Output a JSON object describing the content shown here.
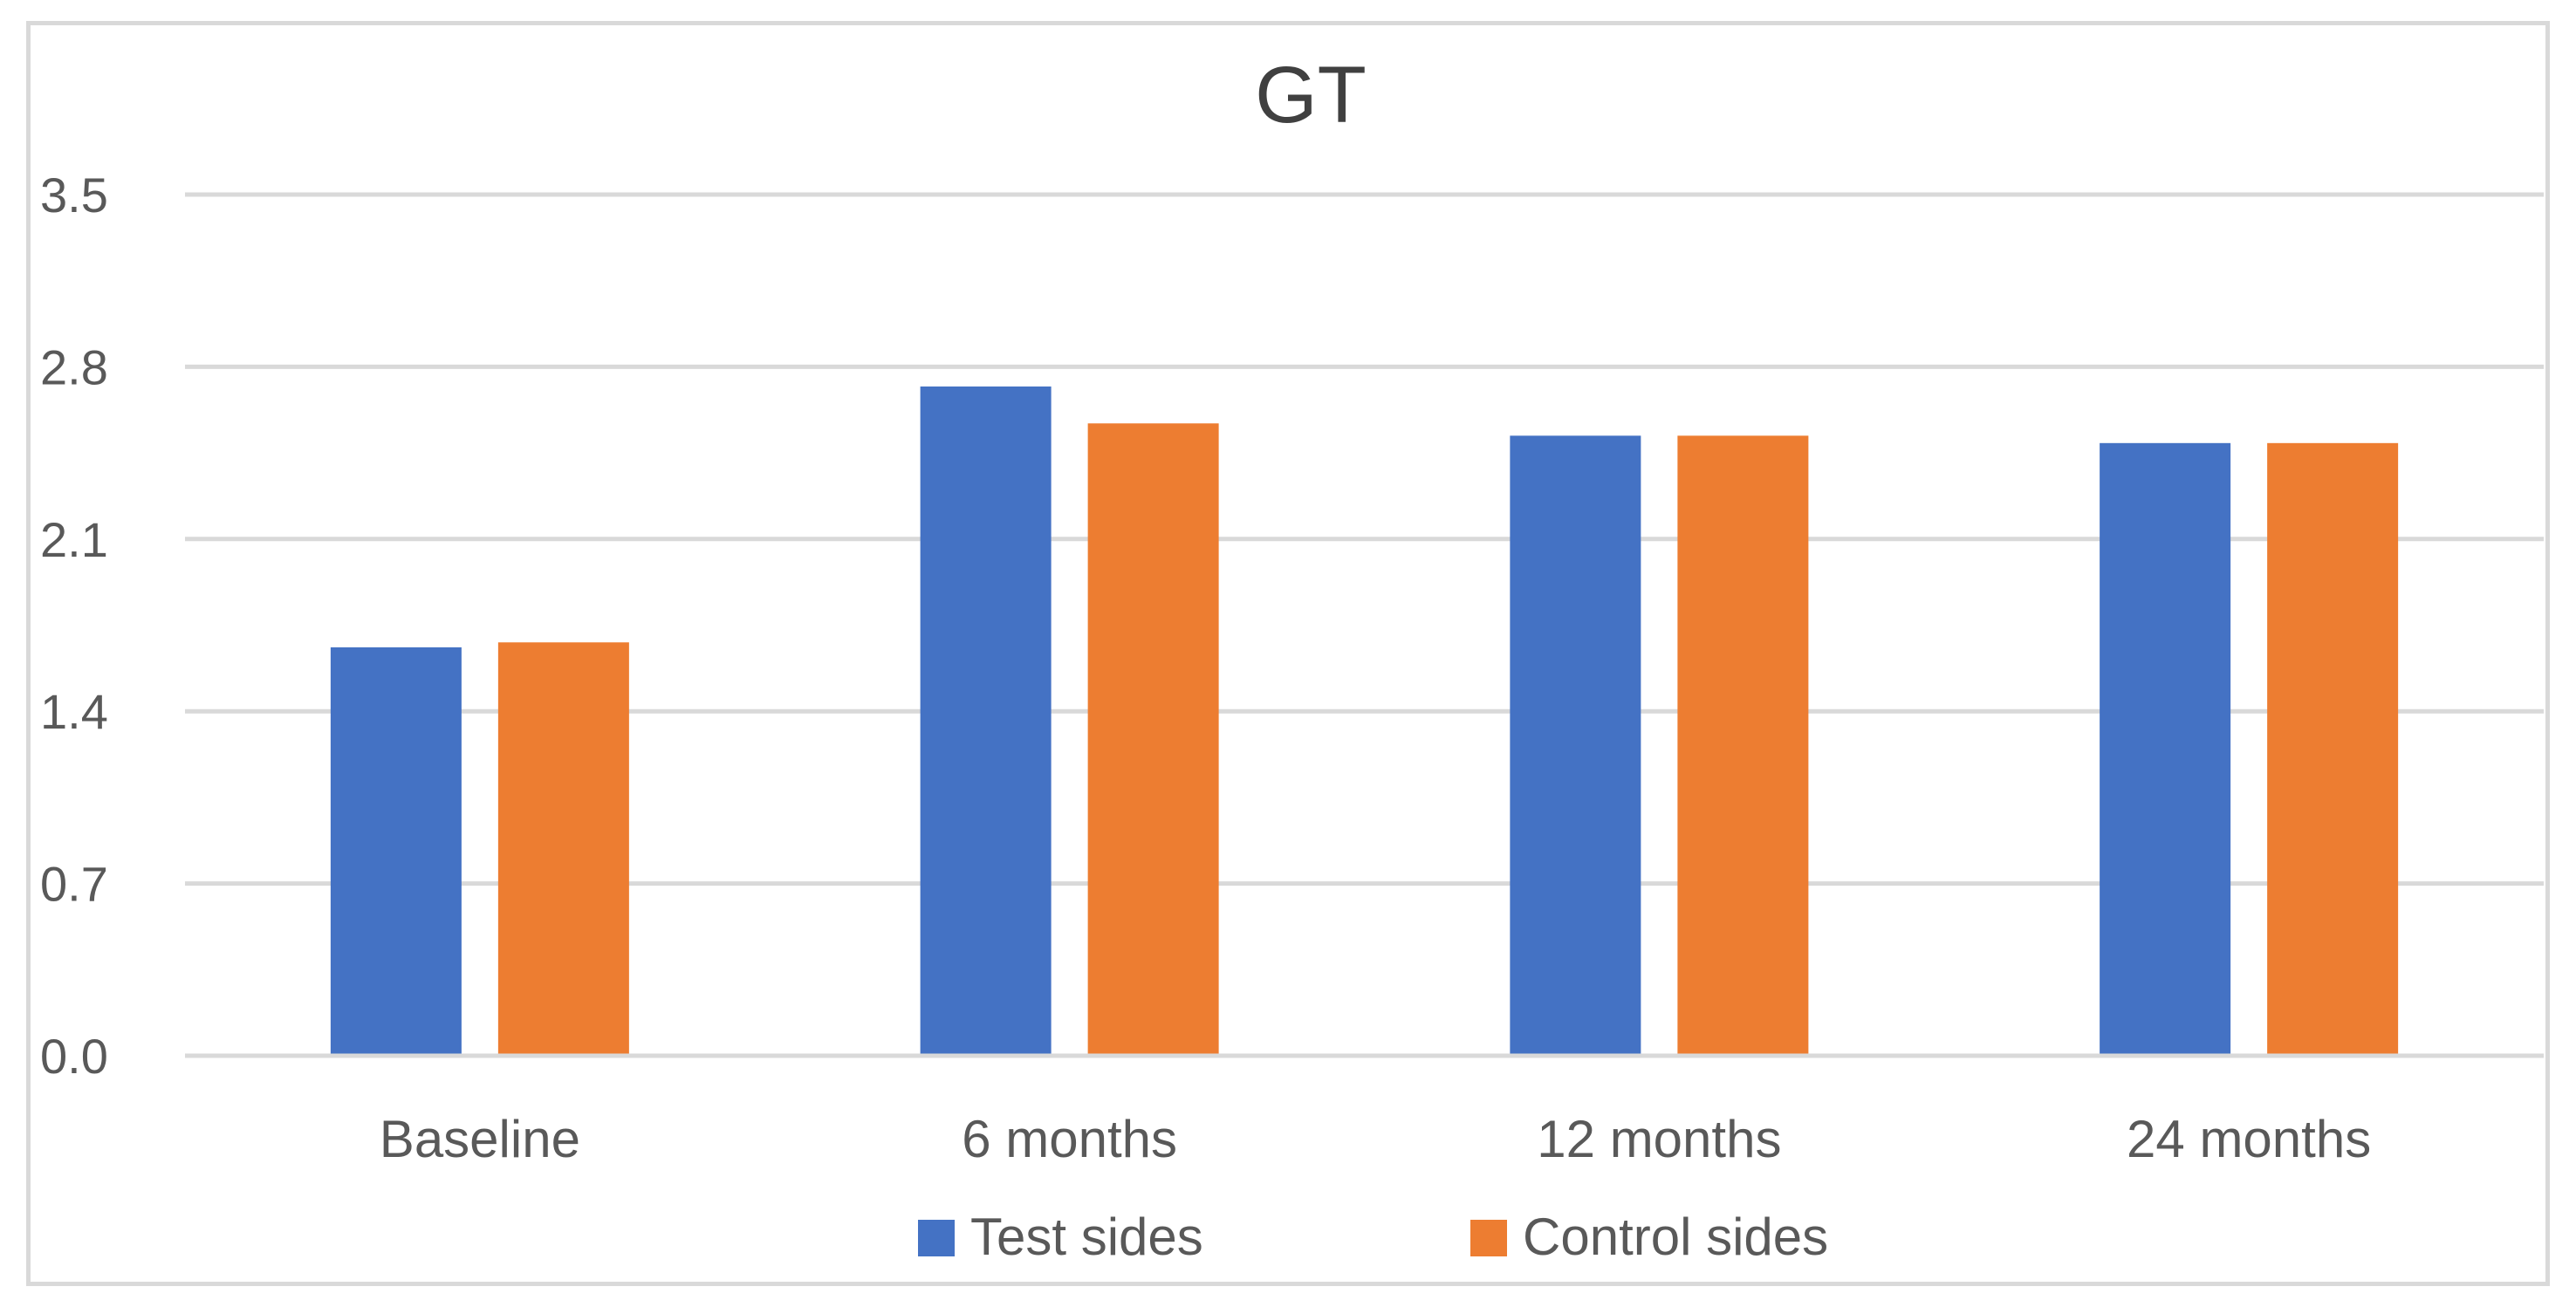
{
  "chart_data": {
    "type": "bar",
    "title": "GT",
    "xlabel": "",
    "ylabel": "",
    "categories": [
      "Baseline",
      "6 months",
      "12 months",
      "24 months"
    ],
    "series": [
      {
        "name": "Test sides",
        "color": "#4472c4",
        "values": [
          1.66,
          2.72,
          2.52,
          2.49
        ]
      },
      {
        "name": "Control sides",
        "color": "#ed7d31",
        "values": [
          1.68,
          2.57,
          2.52,
          2.49
        ]
      }
    ],
    "ylim": [
      0,
      3.5
    ],
    "yticks": [
      "0.0",
      "0.7",
      "1.4",
      "2.1",
      "2.8",
      "3.5"
    ],
    "grid": true,
    "legend_position": "bottom"
  }
}
